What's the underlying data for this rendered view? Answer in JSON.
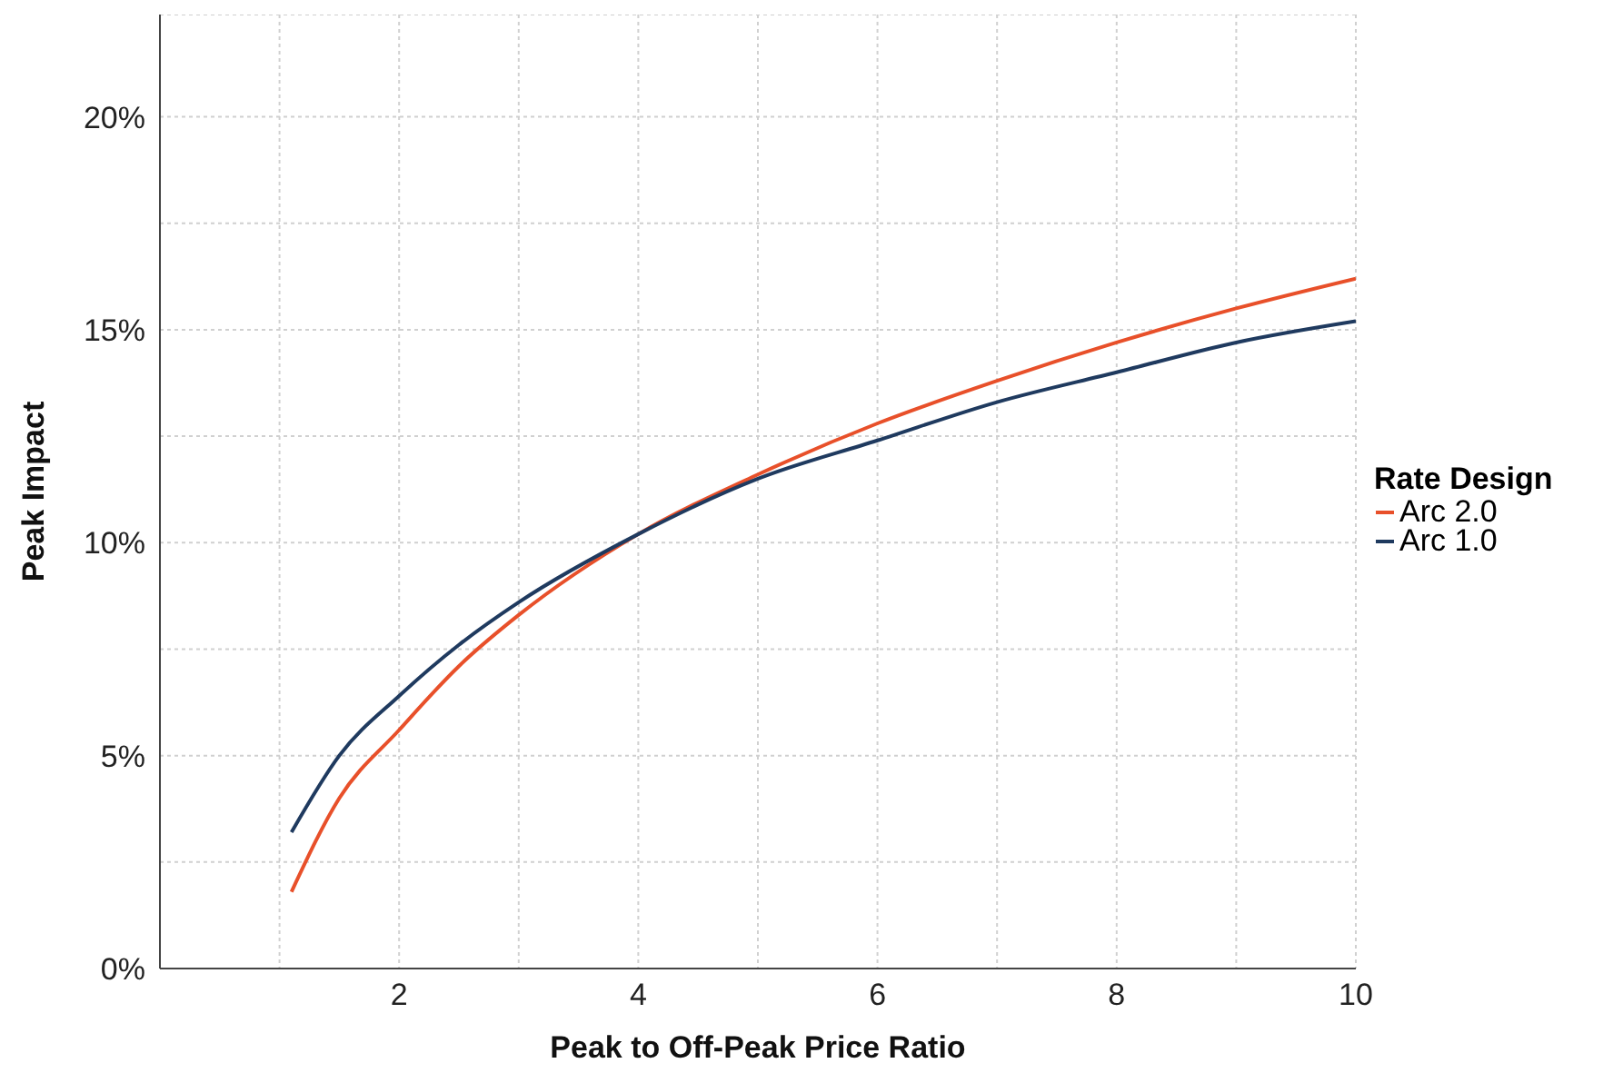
{
  "chart_data": {
    "type": "line",
    "xlabel": "Peak to Off-Peak Price Ratio",
    "ylabel": "Peak Impact",
    "legend_title": "Rate Design",
    "legend": "right",
    "grid": true,
    "marker": "none",
    "line_style": "solid",
    "xlim": [
      0,
      10
    ],
    "xticks": [
      {
        "value": 1,
        "label": null
      },
      2,
      {
        "value": 3,
        "label": null
      },
      4,
      {
        "value": 5,
        "label": null
      },
      6,
      {
        "value": 7,
        "label": null
      },
      8,
      {
        "value": 9,
        "label": null
      },
      10
    ],
    "ylim": [
      0,
      22.4
    ],
    "yticks": [
      {
        "value": 0,
        "label": "0%"
      },
      {
        "value": 2.5,
        "label": null
      },
      {
        "value": 5,
        "label": "5%"
      },
      {
        "value": 7.5,
        "label": null
      },
      {
        "value": 10,
        "label": "10%"
      },
      {
        "value": 12.5,
        "label": null
      },
      {
        "value": 15,
        "label": "15%"
      },
      {
        "value": 17.5,
        "label": null
      },
      {
        "value": 20,
        "label": "20%"
      }
    ],
    "series": [
      {
        "name": "Arc 2.0",
        "color": "#e8502a",
        "x": [
          1.1,
          1.5,
          2,
          2.5,
          3,
          4,
          5,
          6,
          7,
          8,
          9,
          10
        ],
        "values": [
          1.8,
          4.0,
          5.6,
          7.1,
          8.3,
          10.2,
          11.6,
          12.8,
          13.8,
          14.7,
          15.5,
          16.2
        ]
      },
      {
        "name": "Arc 1.0",
        "color": "#1f3a5f",
        "x": [
          1.1,
          1.5,
          2,
          2.5,
          3,
          4,
          5,
          6,
          7,
          8,
          9,
          10
        ],
        "values": [
          3.2,
          5.0,
          6.4,
          7.6,
          8.6,
          10.2,
          11.5,
          12.4,
          13.3,
          14.0,
          14.7,
          15.2
        ]
      }
    ]
  }
}
